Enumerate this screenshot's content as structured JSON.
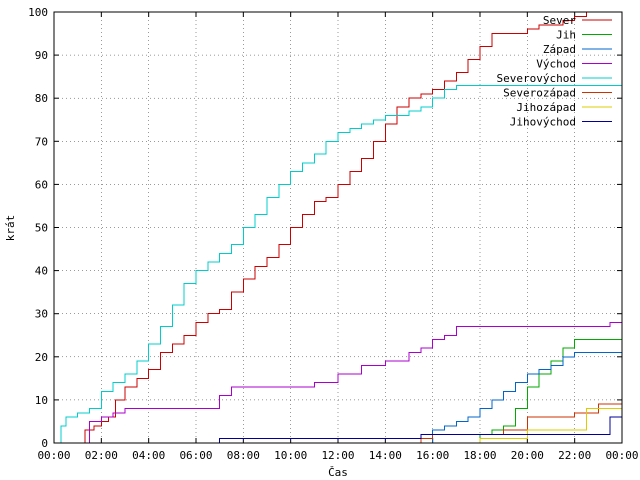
{
  "chart_data": {
    "type": "line",
    "xlabel": "Čas",
    "ylabel": "krát",
    "xlim": [
      0,
      24
    ],
    "ylim": [
      0,
      100
    ],
    "grid": true,
    "legend_position": "top-right",
    "x_ticks": [
      {
        "value": 0,
        "label": "00:00"
      },
      {
        "value": 2,
        "label": "02:00"
      },
      {
        "value": 4,
        "label": "04:00"
      },
      {
        "value": 6,
        "label": "06:00"
      },
      {
        "value": 8,
        "label": "08:00"
      },
      {
        "value": 10,
        "label": "10:00"
      },
      {
        "value": 12,
        "label": "12:00"
      },
      {
        "value": 14,
        "label": "14:00"
      },
      {
        "value": 16,
        "label": "16:00"
      },
      {
        "value": 18,
        "label": "18:00"
      },
      {
        "value": 20,
        "label": "20:00"
      },
      {
        "value": 22,
        "label": "22:00"
      },
      {
        "value": 24,
        "label": "00:00"
      }
    ],
    "y_ticks": [
      {
        "value": 0,
        "label": "0"
      },
      {
        "value": 10,
        "label": "10"
      },
      {
        "value": 20,
        "label": "20"
      },
      {
        "value": 30,
        "label": "30"
      },
      {
        "value": 40,
        "label": "40"
      },
      {
        "value": 50,
        "label": "50"
      },
      {
        "value": 60,
        "label": "60"
      },
      {
        "value": 70,
        "label": "70"
      },
      {
        "value": 80,
        "label": "80"
      },
      {
        "value": 90,
        "label": "90"
      },
      {
        "value": 100,
        "label": "100"
      }
    ],
    "series": [
      {
        "name": "Sever",
        "color": "#cc0000",
        "points": [
          [
            1.0,
            0
          ],
          [
            1.3,
            3
          ],
          [
            1.7,
            4
          ],
          [
            2.0,
            5
          ],
          [
            2.3,
            6
          ],
          [
            2.6,
            10
          ],
          [
            3.0,
            13
          ],
          [
            3.5,
            15
          ],
          [
            4.0,
            17
          ],
          [
            4.5,
            21
          ],
          [
            5.0,
            23
          ],
          [
            5.5,
            25
          ],
          [
            6.0,
            28
          ],
          [
            6.5,
            30
          ],
          [
            7.0,
            31
          ],
          [
            7.5,
            35
          ],
          [
            8.0,
            38
          ],
          [
            8.5,
            41
          ],
          [
            9.0,
            43
          ],
          [
            9.5,
            46
          ],
          [
            10.0,
            50
          ],
          [
            10.5,
            53
          ],
          [
            11.0,
            56
          ],
          [
            11.5,
            57
          ],
          [
            12.0,
            60
          ],
          [
            12.5,
            63
          ],
          [
            13.0,
            66
          ],
          [
            13.5,
            70
          ],
          [
            14.0,
            74
          ],
          [
            14.5,
            78
          ],
          [
            15.0,
            80
          ],
          [
            15.5,
            81
          ],
          [
            16.0,
            82
          ],
          [
            16.5,
            84
          ],
          [
            17.0,
            86
          ],
          [
            17.5,
            89
          ],
          [
            18.0,
            92
          ],
          [
            18.5,
            95
          ],
          [
            19.0,
            95
          ],
          [
            19.5,
            95
          ],
          [
            20.0,
            96
          ],
          [
            20.5,
            97
          ],
          [
            21.0,
            97
          ],
          [
            21.5,
            98
          ],
          [
            22.0,
            99
          ],
          [
            22.5,
            100
          ],
          [
            22.7,
            101
          ]
        ]
      },
      {
        "name": "Jih",
        "color": "#00aa00",
        "points": [
          [
            17.5,
            0
          ],
          [
            18.0,
            2
          ],
          [
            18.5,
            3
          ],
          [
            19.0,
            4
          ],
          [
            19.5,
            8
          ],
          [
            20.0,
            13
          ],
          [
            20.5,
            16
          ],
          [
            21.0,
            19
          ],
          [
            21.5,
            22
          ],
          [
            22.0,
            24
          ],
          [
            23.0,
            24
          ],
          [
            24.0,
            24
          ]
        ]
      },
      {
        "name": "Západ",
        "color": "#0066cc",
        "points": [
          [
            15.0,
            0
          ],
          [
            16.0,
            3
          ],
          [
            16.5,
            4
          ],
          [
            17.0,
            5
          ],
          [
            17.5,
            6
          ],
          [
            18.0,
            8
          ],
          [
            18.5,
            10
          ],
          [
            19.0,
            12
          ],
          [
            19.5,
            14
          ],
          [
            20.0,
            16
          ],
          [
            20.5,
            17
          ],
          [
            21.0,
            18
          ],
          [
            21.5,
            20
          ],
          [
            22.0,
            21
          ],
          [
            24.0,
            21
          ]
        ]
      },
      {
        "name": "Východ",
        "color": "#aa00cc",
        "points": [
          [
            1.0,
            0
          ],
          [
            1.5,
            5
          ],
          [
            2.0,
            6
          ],
          [
            2.5,
            7
          ],
          [
            3.0,
            8
          ],
          [
            4.0,
            8
          ],
          [
            5.0,
            8
          ],
          [
            6.0,
            8
          ],
          [
            6.5,
            8
          ],
          [
            7.0,
            11
          ],
          [
            7.5,
            13
          ],
          [
            8.0,
            13
          ],
          [
            9.0,
            13
          ],
          [
            10.0,
            13
          ],
          [
            11.0,
            14
          ],
          [
            12.0,
            16
          ],
          [
            13.0,
            18
          ],
          [
            14.0,
            19
          ],
          [
            15.0,
            21
          ],
          [
            15.5,
            22
          ],
          [
            16.0,
            24
          ],
          [
            16.5,
            25
          ],
          [
            17.0,
            27
          ],
          [
            18.0,
            27
          ],
          [
            20.0,
            27
          ],
          [
            22.0,
            27
          ],
          [
            23.5,
            28
          ],
          [
            24.0,
            30
          ]
        ]
      },
      {
        "name": "Severovýchod",
        "color": "#00cccc",
        "points": [
          [
            0.0,
            0
          ],
          [
            0.3,
            4
          ],
          [
            0.5,
            6
          ],
          [
            1.0,
            7
          ],
          [
            1.5,
            8
          ],
          [
            2.0,
            12
          ],
          [
            2.5,
            14
          ],
          [
            3.0,
            16
          ],
          [
            3.5,
            19
          ],
          [
            4.0,
            23
          ],
          [
            4.5,
            27
          ],
          [
            5.0,
            32
          ],
          [
            5.5,
            37
          ],
          [
            6.0,
            40
          ],
          [
            6.5,
            42
          ],
          [
            7.0,
            44
          ],
          [
            7.5,
            46
          ],
          [
            8.0,
            50
          ],
          [
            8.5,
            53
          ],
          [
            9.0,
            57
          ],
          [
            9.5,
            60
          ],
          [
            10.0,
            63
          ],
          [
            10.5,
            65
          ],
          [
            11.0,
            67
          ],
          [
            11.5,
            70
          ],
          [
            12.0,
            72
          ],
          [
            12.5,
            73
          ],
          [
            13.0,
            74
          ],
          [
            13.5,
            75
          ],
          [
            14.0,
            76
          ],
          [
            14.5,
            76
          ],
          [
            15.0,
            77
          ],
          [
            15.5,
            78
          ],
          [
            16.0,
            80
          ],
          [
            16.5,
            82
          ],
          [
            17.0,
            83
          ],
          [
            18.0,
            83
          ],
          [
            20.0,
            83
          ],
          [
            22.0,
            83
          ],
          [
            23.0,
            83
          ],
          [
            24.0,
            85
          ]
        ]
      },
      {
        "name": "Severozápad",
        "color": "#cc3300",
        "points": [
          [
            15.0,
            0
          ],
          [
            15.5,
            1
          ],
          [
            16.0,
            2
          ],
          [
            17.0,
            2
          ],
          [
            18.0,
            2
          ],
          [
            19.0,
            3
          ],
          [
            20.0,
            6
          ],
          [
            21.0,
            6
          ],
          [
            22.0,
            7
          ],
          [
            23.0,
            9
          ],
          [
            24.0,
            9
          ]
        ]
      },
      {
        "name": "Jihozápad",
        "color": "#ddcc00",
        "points": [
          [
            17.5,
            0
          ],
          [
            18.0,
            1
          ],
          [
            19.0,
            1
          ],
          [
            20.0,
            3
          ],
          [
            21.0,
            3
          ],
          [
            22.0,
            3
          ],
          [
            22.5,
            8
          ],
          [
            23.0,
            8
          ],
          [
            24.0,
            8
          ]
        ]
      },
      {
        "name": "Jihovýchod",
        "color": "#000099",
        "points": [
          [
            6.9,
            0
          ],
          [
            7.0,
            1
          ],
          [
            8.0,
            1
          ],
          [
            10.0,
            1
          ],
          [
            12.0,
            1
          ],
          [
            14.0,
            1
          ],
          [
            15.0,
            1
          ],
          [
            15.5,
            2
          ],
          [
            16.0,
            2
          ],
          [
            18.0,
            2
          ],
          [
            20.0,
            2
          ],
          [
            22.0,
            2
          ],
          [
            23.5,
            6
          ],
          [
            24.0,
            6
          ]
        ]
      }
    ]
  }
}
